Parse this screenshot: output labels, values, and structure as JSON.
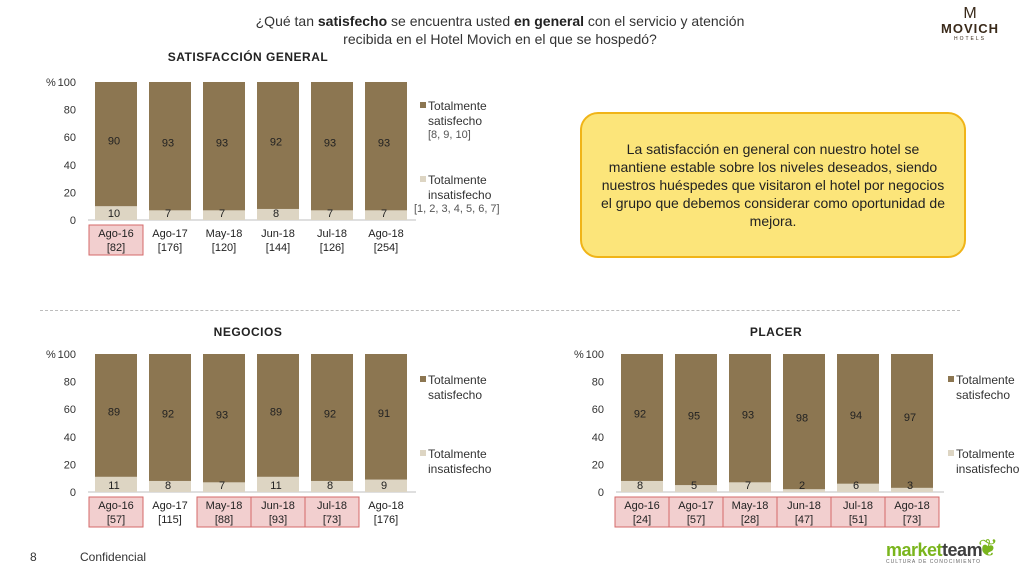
{
  "header": {
    "title_parts": [
      "¿Qué tan ",
      "satisfecho",
      " se encuentra usted ",
      "en general",
      " con el servicio y atención recibida en el Hotel Movich en el que se hospedó?"
    ],
    "logo_name": "MOVICH",
    "logo_sub": "HOTELS",
    "logo_mark": "M"
  },
  "callout": {
    "text": "La satisfacción en general con nuestro hotel se mantiene estable sobre los niveles deseados, siendo nuestros huéspedes que visitaron el hotel por negocios el grupo que debemos considerar como oportunidad de mejora."
  },
  "footer": {
    "page_number": "8",
    "confidential": "Confidencial",
    "brand_market": "market",
    "brand_team": "team",
    "brand_tag": "CULTURA DE CONOCIMIENTO"
  },
  "colors": {
    "satisfied": "#8c7651",
    "unsatisfied": "#ddd5c3",
    "highlight_fill": "#f2cfcf",
    "highlight_stroke": "#d46a6a",
    "axis": "#bfbfbf"
  },
  "chart_data": [
    {
      "type": "bar",
      "stacked": true,
      "title": "SATISFACCIÓN GENERAL",
      "ylabel": "%",
      "ylim": [
        0,
        100
      ],
      "yticks": [
        0,
        20,
        40,
        60,
        80,
        100
      ],
      "categories": [
        "Ago-16",
        "Ago-17",
        "May-18",
        "Jun-18",
        "Jul-18",
        "Ago-18"
      ],
      "bases": [
        "[82]",
        "[176]",
        "[120]",
        "[144]",
        "[126]",
        "[254]"
      ],
      "highlighted": [
        true,
        false,
        false,
        false,
        false,
        false
      ],
      "series": [
        {
          "name": "Totalmente insatisfecho",
          "note": "[1, 2, 3, 4, 5, 6, 7]",
          "values": [
            10,
            7,
            7,
            8,
            7,
            7
          ]
        },
        {
          "name": "Totalmente satisfecho",
          "note": "[8, 9, 10]",
          "values": [
            90,
            93,
            93,
            92,
            93,
            93
          ]
        }
      ]
    },
    {
      "type": "bar",
      "stacked": true,
      "title": "NEGOCIOS",
      "ylabel": "%",
      "ylim": [
        0,
        100
      ],
      "yticks": [
        0,
        20,
        40,
        60,
        80,
        100
      ],
      "categories": [
        "Ago-16",
        "Ago-17",
        "May-18",
        "Jun-18",
        "Jul-18",
        "Ago-18"
      ],
      "bases": [
        "[57]",
        "[115]",
        "[88]",
        "[93]",
        "[73]",
        "[176]"
      ],
      "highlighted": [
        true,
        false,
        true,
        true,
        true,
        false
      ],
      "series": [
        {
          "name": "Totalmente insatisfecho",
          "note": "",
          "values": [
            11,
            8,
            7,
            11,
            8,
            9
          ]
        },
        {
          "name": "Totalmente satisfecho",
          "note": "",
          "values": [
            89,
            92,
            93,
            89,
            92,
            91
          ]
        }
      ]
    },
    {
      "type": "bar",
      "stacked": true,
      "title": "PLACER",
      "ylabel": "%",
      "ylim": [
        0,
        100
      ],
      "yticks": [
        0,
        20,
        40,
        60,
        80,
        100
      ],
      "categories": [
        "Ago-16",
        "Ago-17",
        "May-18",
        "Jun-18",
        "Jul-18",
        "Ago-18"
      ],
      "bases": [
        "[24]",
        "[57]",
        "[28]",
        "[47]",
        "[51]",
        "[73]"
      ],
      "highlighted": [
        true,
        true,
        true,
        true,
        true,
        true
      ],
      "series": [
        {
          "name": "Totalmente insatisfecho",
          "note": "",
          "values": [
            8,
            5,
            7,
            2,
            6,
            3
          ]
        },
        {
          "name": "Totalmente satisfecho",
          "note": "",
          "values": [
            92,
            95,
            93,
            98,
            94,
            97
          ]
        }
      ]
    }
  ]
}
